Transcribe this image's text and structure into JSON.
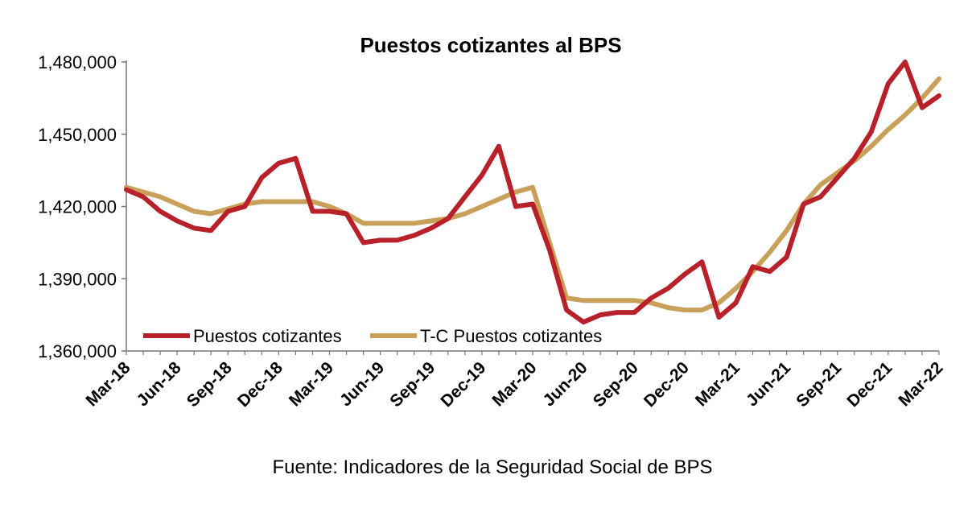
{
  "chart_data": {
    "type": "line",
    "title": "Puestos cotizantes al BPS",
    "xlabel": "",
    "ylabel": "",
    "ylim": [
      1360000,
      1480000
    ],
    "yticks": [
      "1,360,000",
      "1,390,000",
      "1,420,000",
      "1,450,000",
      "1,480,000"
    ],
    "ytick_values": [
      1360000,
      1390000,
      1420000,
      1450000,
      1480000
    ],
    "x": [
      "Mar-18",
      "Apr-18",
      "May-18",
      "Jun-18",
      "Jul-18",
      "Aug-18",
      "Sep-18",
      "Oct-18",
      "Nov-18",
      "Dec-18",
      "Jan-19",
      "Feb-19",
      "Mar-19",
      "Apr-19",
      "May-19",
      "Jun-19",
      "Jul-19",
      "Aug-19",
      "Sep-19",
      "Oct-19",
      "Nov-19",
      "Dec-19",
      "Jan-20",
      "Feb-20",
      "Mar-20",
      "Apr-20",
      "May-20",
      "Jun-20",
      "Jul-20",
      "Aug-20",
      "Sep-20",
      "Oct-20",
      "Nov-20",
      "Dec-20",
      "Jan-21",
      "Feb-21",
      "Mar-21",
      "Apr-21",
      "May-21",
      "Jun-21",
      "Jul-21",
      "Aug-21",
      "Sep-21",
      "Oct-21",
      "Nov-21",
      "Dec-21",
      "Jan-22",
      "Feb-22",
      "Mar-22"
    ],
    "xtick_labels": [
      "Mar-18",
      "Jun-18",
      "Sep-18",
      "Dec-18",
      "Mar-19",
      "Jun-19",
      "Sep-19",
      "Dec-19",
      "Mar-20",
      "Jun-20",
      "Sep-20",
      "Dec-20",
      "Mar-21",
      "Jun-21",
      "Sep-21",
      "Dec-21",
      "Mar-22"
    ],
    "series": [
      {
        "name": "Puestos cotizantes",
        "color": "#b8202a",
        "values": [
          1427000,
          1424000,
          1418000,
          1414000,
          1411000,
          1410000,
          1418000,
          1420000,
          1432000,
          1438000,
          1440000,
          1418000,
          1418000,
          1417000,
          1405000,
          1406000,
          1406000,
          1408000,
          1411000,
          1415000,
          1424000,
          1433000,
          1445000,
          1420000,
          1421000,
          1402000,
          1377000,
          1372000,
          1375000,
          1376000,
          1376000,
          1382000,
          1386000,
          1392000,
          1397000,
          1374000,
          1380000,
          1395000,
          1393000,
          1399000,
          1421000,
          1424000,
          1432000,
          1440000,
          1451000,
          1471000,
          1480000,
          1461000,
          1466000
        ]
      },
      {
        "name": "T-C Puestos cotizantes",
        "color": "#c9a05a",
        "values": [
          1428000,
          1426000,
          1424000,
          1421000,
          1418000,
          1417000,
          1419000,
          1421000,
          1422000,
          1422000,
          1422000,
          1422000,
          1420000,
          1417000,
          1413000,
          1413000,
          1413000,
          1413000,
          1414000,
          1415000,
          1417000,
          1420000,
          1423000,
          1426000,
          1428000,
          1405000,
          1382000,
          1381000,
          1381000,
          1381000,
          1381000,
          1380000,
          1378000,
          1377000,
          1377000,
          1380000,
          1386000,
          1393000,
          1401000,
          1410000,
          1421000,
          1429000,
          1434000,
          1439000,
          1445000,
          1452000,
          1458000,
          1465000,
          1473000
        ]
      }
    ],
    "legend": "bottom-left",
    "grid": false
  },
  "source_note": "Fuente: Indicadores de la Seguridad Social de BPS"
}
